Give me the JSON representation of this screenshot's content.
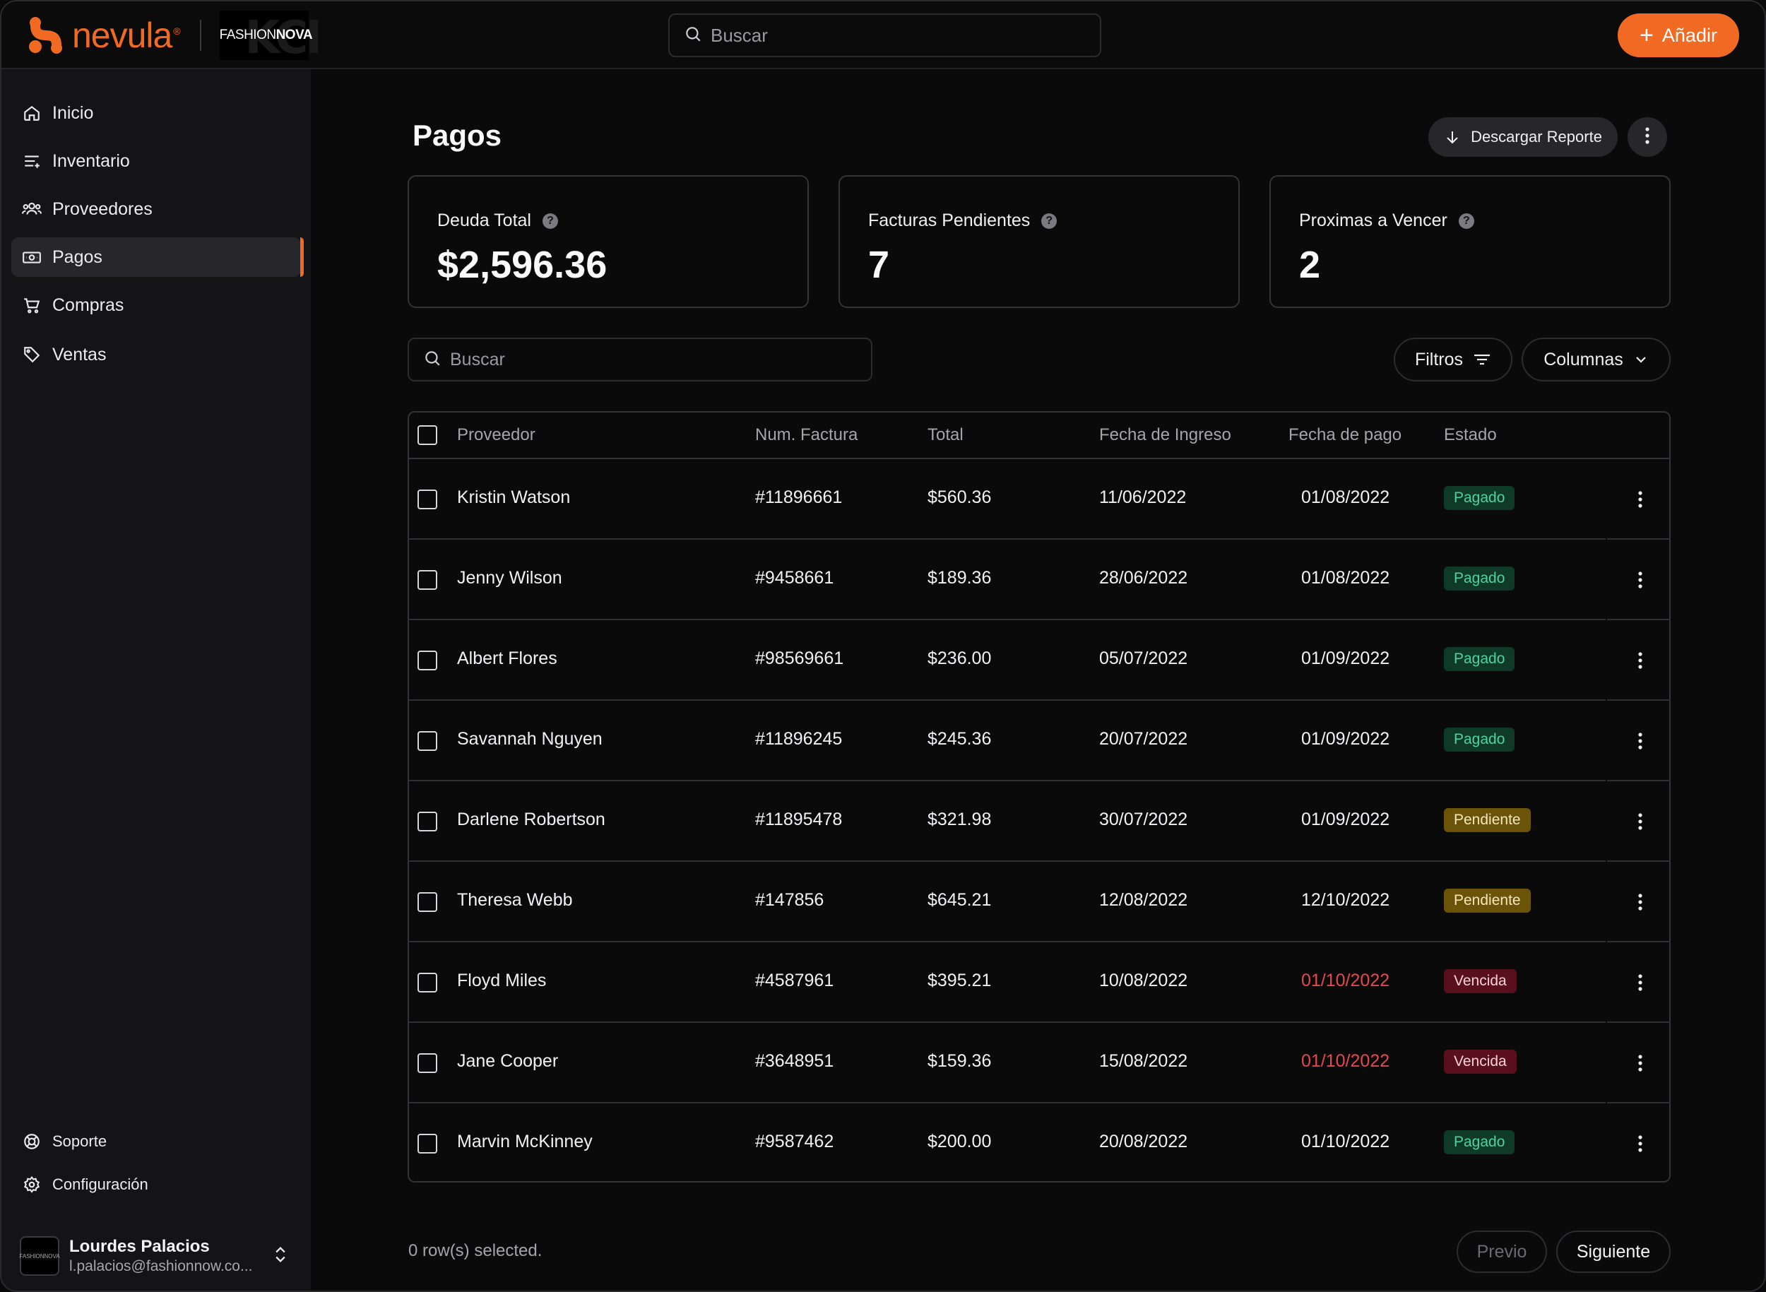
{
  "brand": {
    "name": "nevula",
    "registered": "®",
    "partner_prefix": "FASHION",
    "partner_suffix": "NOVA"
  },
  "header": {
    "search_placeholder": "Buscar",
    "add_label": "Añadir"
  },
  "sidebar": {
    "items": [
      {
        "label": "Inicio",
        "icon": "home-icon"
      },
      {
        "label": "Inventario",
        "icon": "list-icon"
      },
      {
        "label": "Proveedores",
        "icon": "users-icon"
      },
      {
        "label": "Pagos",
        "icon": "banknote-icon",
        "active": true
      },
      {
        "label": "Compras",
        "icon": "cart-icon"
      },
      {
        "label": "Ventas",
        "icon": "tag-icon"
      }
    ],
    "bottom": [
      {
        "label": "Soporte",
        "icon": "lifebuoy-icon"
      },
      {
        "label": "Configuración",
        "icon": "gear-icon"
      }
    ],
    "user": {
      "name": "Lourdes Palacios",
      "email": "l.palacios@fashionnow.co...",
      "avatar_text": "FASHIONNOVA"
    }
  },
  "page": {
    "title": "Pagos",
    "download_label": "Descargar Reporte"
  },
  "cards": [
    {
      "label": "Deuda Total",
      "value": "$2,596.36"
    },
    {
      "label": "Facturas Pendientes",
      "value": "7"
    },
    {
      "label": "Proximas a Vencer",
      "value": "2"
    }
  ],
  "toolbar": {
    "search_placeholder": "Buscar",
    "filters_label": "Filtros",
    "columns_label": "Columnas"
  },
  "table": {
    "headers": [
      "Proveedor",
      "Num. Factura",
      "Total",
      "Fecha de Ingreso",
      "Fecha de pago",
      "Estado"
    ],
    "rows": [
      {
        "provider": "Kristin Watson",
        "invoice": "#11896661",
        "total": "$560.36",
        "entry_date": "11/06/2022",
        "pay_date": "01/08/2022",
        "status": "Pagado",
        "status_type": "paid",
        "overdue": false
      },
      {
        "provider": "Jenny Wilson",
        "invoice": "#9458661",
        "total": "$189.36",
        "entry_date": "28/06/2022",
        "pay_date": "01/08/2022",
        "status": "Pagado",
        "status_type": "paid",
        "overdue": false
      },
      {
        "provider": "Albert Flores",
        "invoice": "#98569661",
        "total": "$236.00",
        "entry_date": "05/07/2022",
        "pay_date": "01/09/2022",
        "status": "Pagado",
        "status_type": "paid",
        "overdue": false
      },
      {
        "provider": "Savannah Nguyen",
        "invoice": "#11896245",
        "total": "$245.36",
        "entry_date": "20/07/2022",
        "pay_date": "01/09/2022",
        "status": "Pagado",
        "status_type": "paid",
        "overdue": false
      },
      {
        "provider": "Darlene Robertson",
        "invoice": "#11895478",
        "total": "$321.98",
        "entry_date": "30/07/2022",
        "pay_date": "01/09/2022",
        "status": "Pendiente",
        "status_type": "pending",
        "overdue": false
      },
      {
        "provider": "Theresa Webb",
        "invoice": "#147856",
        "total": "$645.21",
        "entry_date": "12/08/2022",
        "pay_date": "12/10/2022",
        "status": "Pendiente",
        "status_type": "pending",
        "overdue": false
      },
      {
        "provider": "Floyd Miles",
        "invoice": "#4587961",
        "total": "$395.21",
        "entry_date": "10/08/2022",
        "pay_date": "01/10/2022",
        "status": "Vencida",
        "status_type": "overdue",
        "overdue": true
      },
      {
        "provider": "Jane Cooper",
        "invoice": "#3648951",
        "total": "$159.36",
        "entry_date": "15/08/2022",
        "pay_date": "01/10/2022",
        "status": "Vencida",
        "status_type": "overdue",
        "overdue": true
      },
      {
        "provider": "Marvin McKinney",
        "invoice": "#9587462",
        "total": "$200.00",
        "entry_date": "20/08/2022",
        "pay_date": "01/10/2022",
        "status": "Pagado",
        "status_type": "paid",
        "overdue": false
      }
    ]
  },
  "footer": {
    "selection_text": "0 row(s) selected.",
    "prev_label": "Previo",
    "next_label": "Siguiente"
  },
  "colors": {
    "accent": "#f06a24",
    "paid_bg": "#0f3a2a",
    "paid_fg": "#4fd1a0",
    "pending_bg": "#6b5309",
    "overdue_bg": "#5a0f1c",
    "overdue_fg": "#e5484d"
  }
}
